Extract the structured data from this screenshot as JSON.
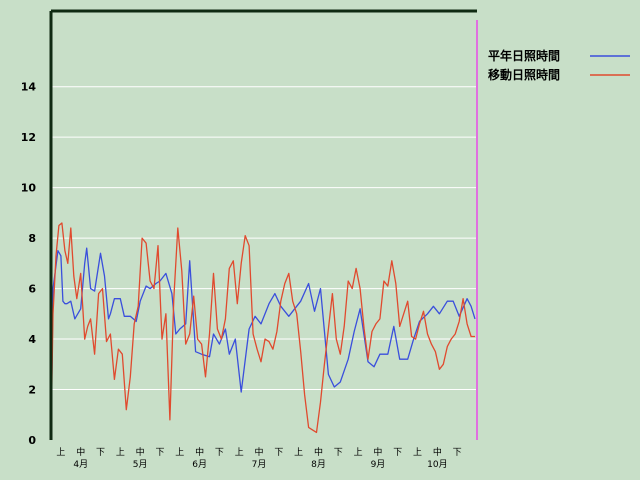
{
  "chart_data": {
    "type": "line",
    "title": "",
    "xlabel": "",
    "ylabel": "",
    "ylim": [
      0,
      17
    ],
    "yticks": [
      0,
      2,
      4,
      6,
      8,
      10,
      12,
      14
    ],
    "grid": true,
    "legend_position": "top-right",
    "x_period_labels": [
      "上",
      "中",
      "下",
      "上",
      "中",
      "下",
      "上",
      "中",
      "下",
      "上",
      "中",
      "下",
      "上",
      "中",
      "下",
      "上",
      "中",
      "下",
      "上",
      "中",
      "下"
    ],
    "x_month_labels": [
      "4月",
      "5月",
      "6月",
      "7月",
      "8月",
      "9月",
      "10月"
    ],
    "x_label_dekads": [
      1,
      2,
      3,
      4,
      5,
      6,
      7,
      8,
      9,
      10,
      11,
      12,
      13,
      14,
      15,
      16,
      17,
      18,
      19,
      20,
      21
    ],
    "x_month_dekads": [
      2,
      5,
      8,
      11,
      14,
      17,
      20
    ],
    "x_range_dekads": [
      0,
      21.5
    ],
    "series": [
      {
        "name": "平年日照時間",
        "color": "#3a4fdc",
        "x": [
          0.0,
          0.1,
          0.2,
          0.35,
          0.5,
          0.6,
          0.7,
          0.8,
          1.0,
          1.2,
          1.5,
          1.7,
          1.8,
          2.0,
          2.2,
          2.5,
          2.7,
          2.9,
          3.0,
          3.2,
          3.5,
          3.7,
          4.0,
          4.3,
          4.5,
          4.8,
          5.0,
          5.3,
          5.5,
          5.8,
          6.1,
          6.3,
          6.5,
          6.8,
          7.0,
          7.3,
          7.6,
          8.0,
          8.2,
          8.5,
          8.8,
          9.0,
          9.3,
          9.6,
          10.0,
          10.3,
          10.6,
          11.0,
          11.3,
          11.6,
          12.0,
          12.3,
          12.6,
          13.0,
          13.3,
          13.6,
          14.0,
          14.3,
          14.6,
          15.0,
          15.3,
          15.6,
          16.0,
          16.3,
          16.6,
          17.0,
          17.3,
          17.6,
          18.0,
          18.3,
          18.6,
          19.0,
          19.3,
          19.6,
          20.0,
          20.3,
          20.6,
          21.0,
          21.2,
          21.4
        ],
        "values": [
          0.0,
          6.0,
          6.6,
          7.5,
          7.3,
          5.5,
          5.4,
          5.4,
          5.5,
          4.8,
          5.2,
          7.0,
          7.6,
          6.0,
          5.9,
          7.4,
          6.5,
          4.8,
          5.0,
          5.6,
          5.6,
          4.9,
          4.9,
          4.7,
          5.5,
          6.1,
          6.0,
          6.2,
          6.3,
          6.6,
          5.8,
          4.2,
          4.4,
          4.6,
          7.1,
          3.5,
          3.4,
          3.3,
          4.2,
          3.8,
          4.4,
          3.4,
          4.0,
          1.9,
          4.4,
          4.9,
          4.6,
          5.4,
          5.8,
          5.3,
          4.9,
          5.2,
          5.5,
          6.2,
          5.1,
          6.0,
          2.6,
          2.1,
          2.3,
          3.2,
          4.3,
          5.2,
          3.1,
          2.9,
          3.4,
          3.4,
          4.5,
          3.2,
          3.2,
          4.0,
          4.7,
          5.0,
          5.3,
          5.0,
          5.5,
          5.5,
          4.9,
          5.6,
          5.3,
          4.8
        ]
      },
      {
        "name": "移動日照時間",
        "color": "#e04a2e",
        "x": [
          0.0,
          0.1,
          0.25,
          0.4,
          0.55,
          0.7,
          0.85,
          1.0,
          1.15,
          1.3,
          1.5,
          1.7,
          1.85,
          2.0,
          2.2,
          2.4,
          2.6,
          2.8,
          3.0,
          3.2,
          3.4,
          3.6,
          3.8,
          4.0,
          4.2,
          4.4,
          4.6,
          4.8,
          5.0,
          5.2,
          5.4,
          5.6,
          5.8,
          6.0,
          6.2,
          6.4,
          6.6,
          6.8,
          7.0,
          7.2,
          7.4,
          7.6,
          7.8,
          8.0,
          8.2,
          8.4,
          8.6,
          8.8,
          9.0,
          9.2,
          9.4,
          9.6,
          9.8,
          10.0,
          10.2,
          10.4,
          10.6,
          10.8,
          11.0,
          11.2,
          11.4,
          11.6,
          11.8,
          12.0,
          12.2,
          12.4,
          12.6,
          12.8,
          13.0,
          13.2,
          13.4,
          13.6,
          13.8,
          14.0,
          14.2,
          14.4,
          14.6,
          14.8,
          15.0,
          15.2,
          15.4,
          15.6,
          15.8,
          16.0,
          16.2,
          16.4,
          16.6,
          16.8,
          17.0,
          17.2,
          17.4,
          17.6,
          17.8,
          18.0,
          18.2,
          18.4,
          18.6,
          18.8,
          19.0,
          19.2,
          19.4,
          19.6,
          19.8,
          20.0,
          20.2,
          20.4,
          20.6,
          20.8,
          21.0,
          21.2,
          21.4
        ],
        "values": [
          0.0,
          5.0,
          7.3,
          8.5,
          8.6,
          7.5,
          7.0,
          8.4,
          6.5,
          5.6,
          6.6,
          4.0,
          4.5,
          4.8,
          3.4,
          5.8,
          6.0,
          3.9,
          4.2,
          2.4,
          3.6,
          3.4,
          1.2,
          2.5,
          4.6,
          5.3,
          8.0,
          7.8,
          6.3,
          6.0,
          7.7,
          4.0,
          5.0,
          0.8,
          5.6,
          8.4,
          6.7,
          3.8,
          4.2,
          5.7,
          4.0,
          3.8,
          2.5,
          4.2,
          6.6,
          4.4,
          4.0,
          4.8,
          6.8,
          7.1,
          5.4,
          7.0,
          8.1,
          7.7,
          4.2,
          3.6,
          3.1,
          4.0,
          3.9,
          3.6,
          4.3,
          5.5,
          6.2,
          6.6,
          5.5,
          5.0,
          3.5,
          1.8,
          0.5,
          0.4,
          0.3,
          1.5,
          3.0,
          4.4,
          5.8,
          4.0,
          3.4,
          4.5,
          6.3,
          6.0,
          6.8,
          6.0,
          4.4,
          3.2,
          4.3,
          4.6,
          4.8,
          6.3,
          6.1,
          7.1,
          6.2,
          4.5,
          5.0,
          5.5,
          4.1,
          4.0,
          4.6,
          5.1,
          4.2,
          3.8,
          3.5,
          2.8,
          3.0,
          3.7,
          4.0,
          4.2,
          4.7,
          5.6,
          4.6,
          4.1,
          4.1
        ]
      }
    ]
  },
  "legend": {
    "normal_label": "平年日照時間",
    "moving_label": "移動日照時間"
  },
  "colors": {
    "background": "#c8dfc8",
    "grid": "#ffffff",
    "axis": "#0f2a12",
    "normal_line": "#3a4fdc",
    "moving_line": "#e04a2e",
    "current_marker": "#e070e0"
  }
}
